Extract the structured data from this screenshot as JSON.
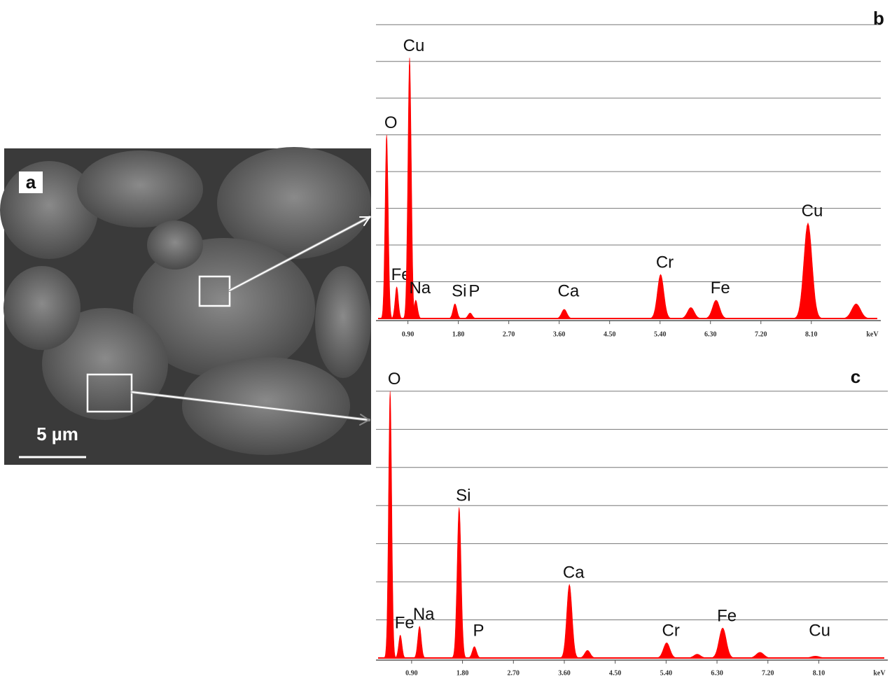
{
  "panel_a": {
    "label": "a",
    "scale_bar": "5 µm"
  },
  "chart_data": [
    {
      "type": "spectrum",
      "panel_label": "b",
      "xlabel": "keV",
      "color": "#ff0000",
      "grid": true,
      "xlim": [
        0.33,
        9.34
      ],
      "ylim": [
        0,
        8.5
      ],
      "xticks": [
        {
          "value": 0.9,
          "label": "0.90"
        },
        {
          "value": 1.8,
          "label": "1.80"
        },
        {
          "value": 2.7,
          "label": "2.70"
        },
        {
          "value": 3.6,
          "label": "3.60"
        },
        {
          "value": 4.5,
          "label": "4.50"
        },
        {
          "value": 5.4,
          "label": "5.40"
        },
        {
          "value": 6.3,
          "label": "6.30"
        },
        {
          "value": 7.2,
          "label": "7.20"
        },
        {
          "value": 8.1,
          "label": "8.10"
        }
      ],
      "x": [
        0.52,
        0.7,
        0.93,
        1.04,
        1.74,
        2.01,
        3.69,
        5.41,
        5.95,
        6.4,
        8.04,
        8.9
      ],
      "values": [
        5.0,
        0.86,
        7.1,
        0.5,
        0.4,
        0.15,
        0.25,
        1.2,
        0.3,
        0.5,
        2.6,
        0.4
      ],
      "labels": [
        "O",
        "Fe",
        "Cu",
        "Na",
        "Si",
        "P",
        "Ca",
        "Cr",
        null,
        "Fe",
        "Cu",
        null
      ]
    },
    {
      "type": "spectrum",
      "panel_label": "c",
      "xlabel": "keV",
      "color": "#ff0000",
      "grid": true,
      "xlim": [
        0.27,
        9.32
      ],
      "ylim": [
        0,
        7.2
      ],
      "xticks": [
        {
          "value": 0.9,
          "label": "0.90"
        },
        {
          "value": 1.8,
          "label": "1.80"
        },
        {
          "value": 2.7,
          "label": "2.70"
        },
        {
          "value": 3.6,
          "label": "3.60"
        },
        {
          "value": 4.5,
          "label": "4.50"
        },
        {
          "value": 5.4,
          "label": "5.40"
        },
        {
          "value": 6.3,
          "label": "6.30"
        },
        {
          "value": 7.2,
          "label": "7.20"
        },
        {
          "value": 8.1,
          "label": "8.10"
        }
      ],
      "x": [
        0.52,
        0.7,
        1.04,
        1.74,
        2.01,
        3.69,
        4.01,
        5.41,
        5.95,
        6.4,
        7.06,
        8.04
      ],
      "values": [
        7.0,
        0.6,
        0.83,
        3.95,
        0.3,
        1.93,
        0.2,
        0.4,
        0.1,
        0.79,
        0.15,
        0.05
      ],
      "labels": [
        "O",
        "Fe",
        "Na",
        "Si",
        "P",
        "Ca",
        null,
        "Cr",
        null,
        "Fe",
        null,
        "Cu"
      ]
    }
  ]
}
